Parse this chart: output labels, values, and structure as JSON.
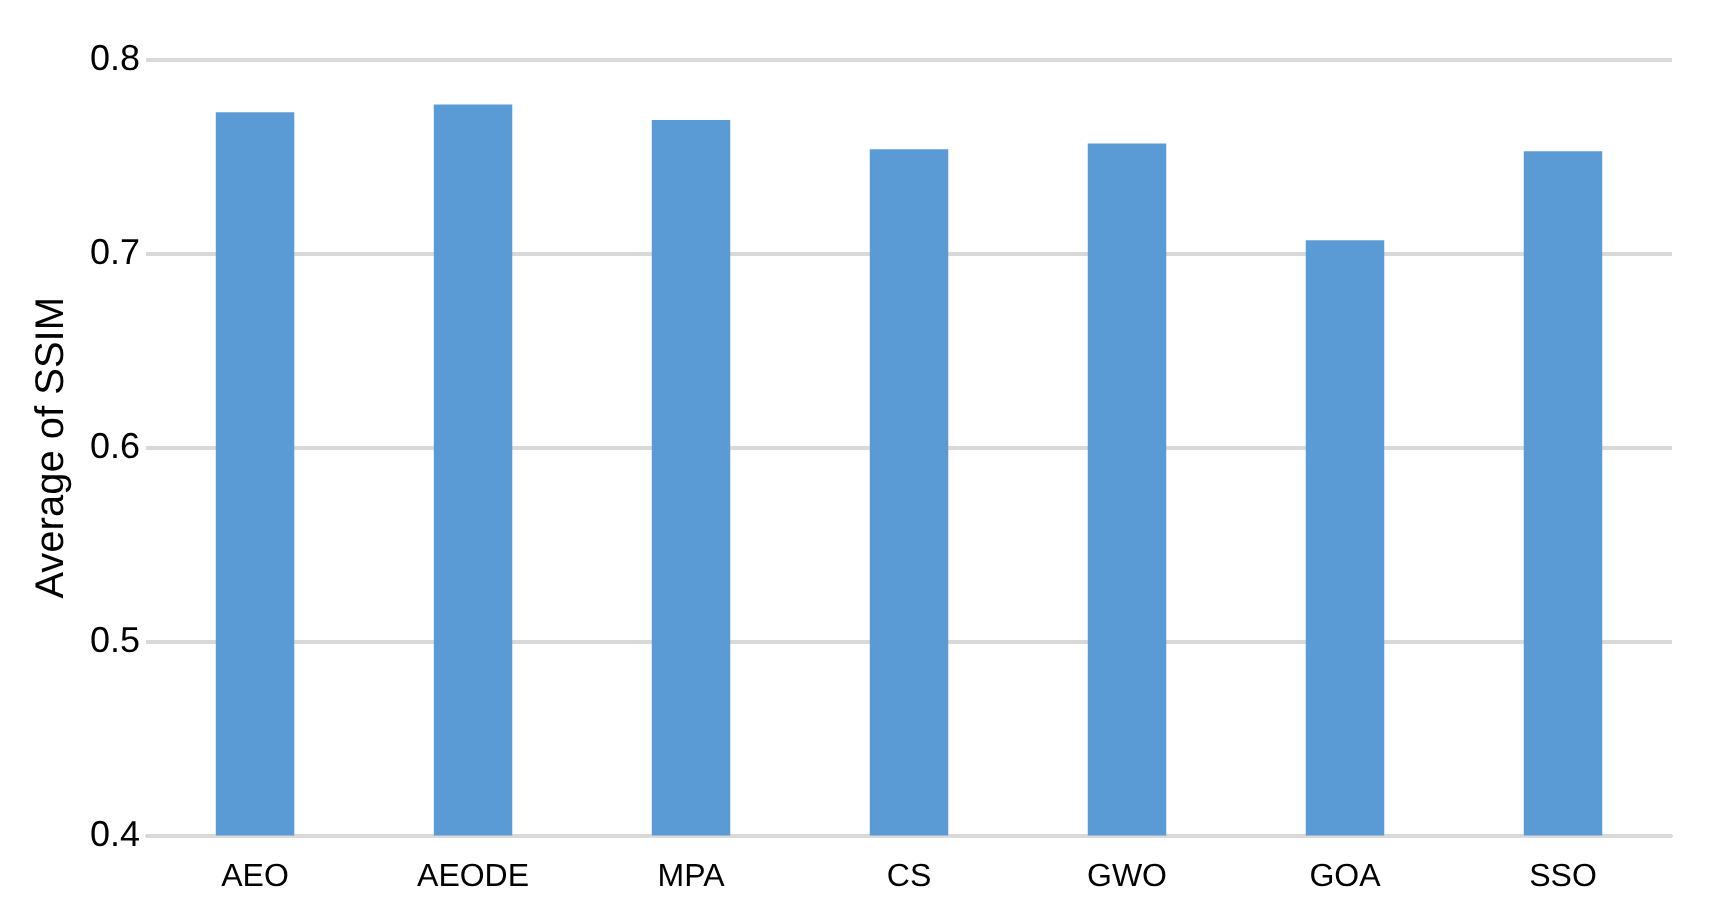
{
  "chart_data": {
    "type": "bar",
    "ylabel": "Average of SSIM",
    "categories": [
      "AEO",
      "AEODE",
      "MPA",
      "CS",
      "GWO",
      "GOA",
      "SSO"
    ],
    "values": [
      0.773,
      0.777,
      0.769,
      0.754,
      0.757,
      0.707,
      0.753
    ],
    "color": "#5b9bd5",
    "ylim": [
      0.4,
      0.8
    ],
    "yticks": [
      0.4,
      0.5,
      0.6,
      0.7,
      0.8
    ],
    "grid": "y",
    "legend": false
  }
}
